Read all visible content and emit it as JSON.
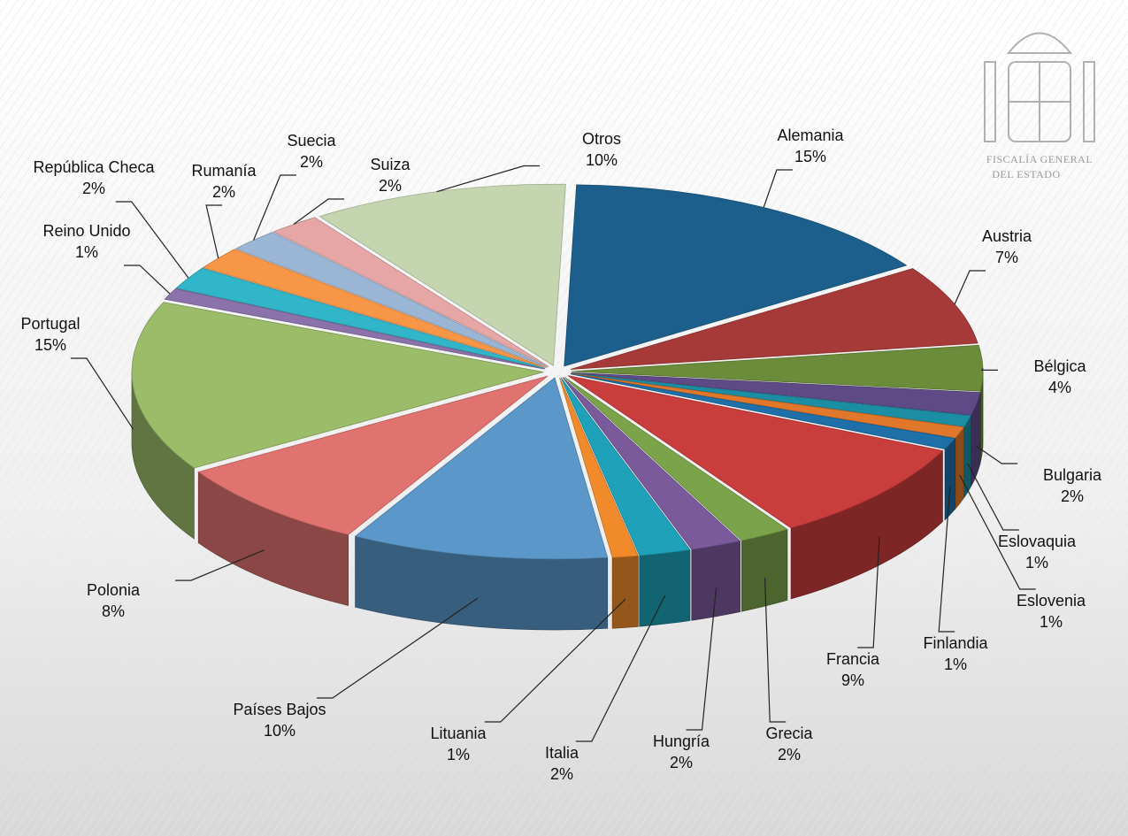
{
  "chart_data": {
    "type": "pie",
    "style": "3d-exploded",
    "categories": [
      "Alemania",
      "Austria",
      "Bélgica",
      "Bulgaria",
      "Eslovaquia",
      "Eslovenia",
      "Finlandia",
      "Francia",
      "Grecia",
      "Hungría",
      "Italia",
      "Lituania",
      "Países Bajos",
      "Polonia",
      "Portugal",
      "Reino Unido",
      "República Checa",
      "Rumanía",
      "Suecia",
      "Suiza",
      "Otros"
    ],
    "values": [
      15,
      7,
      4,
      2,
      1,
      1,
      1,
      9,
      2,
      2,
      2,
      1,
      10,
      8,
      15,
      1,
      2,
      2,
      2,
      2,
      10
    ],
    "value_labels": [
      "15%",
      "7%",
      "4%",
      "2%",
      "1%",
      "1%",
      "1%",
      "9%",
      "2%",
      "2%",
      "2%",
      "1%",
      "10%",
      "8%",
      "15%",
      "1%",
      "2%",
      "2%",
      "2%",
      "2%",
      "10%"
    ],
    "colors": [
      "#1c5f8c",
      "#a63a38",
      "#6b8c3a",
      "#5e4a87",
      "#1b8ea3",
      "#e0772a",
      "#1f6fa8",
      "#c93d3c",
      "#7ba34a",
      "#7b5a9c",
      "#1fa1b9",
      "#f18a2b",
      "#5b97c9",
      "#e07270",
      "#9bbc69",
      "#8b72aa",
      "#31b5c9",
      "#f79646",
      "#9bb5d5",
      "#e5a6a5",
      "#c4d5b0"
    ]
  },
  "logo": {
    "lines": [
      "FISCALÍA GENERAL",
      "DEL ESTADO"
    ]
  }
}
